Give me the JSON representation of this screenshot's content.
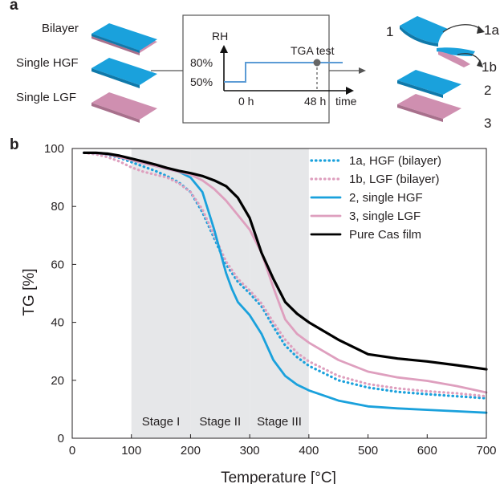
{
  "panel_a": {
    "label": "a",
    "left_labels": [
      "Bilayer",
      "Single HGF",
      "Single LGF"
    ],
    "inset": {
      "ylabel": "RH",
      "xlabel": "time",
      "y_ticks": [
        "80%",
        "50%"
      ],
      "x_ticks": [
        "0 h",
        "48 h"
      ],
      "annotation": "TGA test"
    },
    "right_labels": [
      "1",
      "1a",
      "1b",
      "2",
      "3"
    ]
  },
  "chart_data": {
    "panel_label": "b",
    "type": "line",
    "xlabel": "Temperature [°C]",
    "ylabel": "TG [%]",
    "xlim": [
      0,
      700
    ],
    "ylim": [
      0,
      100
    ],
    "x_ticks": [
      0,
      100,
      200,
      300,
      400,
      500,
      600,
      700
    ],
    "y_ticks": [
      0,
      20,
      40,
      60,
      80,
      100
    ],
    "legend_position": "top-right",
    "shaded_regions": [
      {
        "label": "Stage I",
        "x": [
          100,
          200
        ]
      },
      {
        "label": "Stage II",
        "x": [
          200,
          300
        ]
      },
      {
        "label": "Stage III",
        "x": [
          300,
          400
        ]
      }
    ],
    "series": [
      {
        "name": "1a, HGF (bilayer)",
        "color": "#1aa1dc",
        "dash": "dotted",
        "x": [
          20,
          40,
          60,
          80,
          100,
          120,
          140,
          160,
          180,
          200,
          220,
          240,
          260,
          280,
          300,
          320,
          340,
          360,
          380,
          400,
          450,
          500,
          550,
          600,
          650,
          700
        ],
        "y": [
          98.5,
          98.3,
          97.8,
          96.8,
          95.3,
          93.8,
          92.3,
          90.5,
          88.3,
          85.0,
          78.0,
          69.0,
          60.0,
          54.0,
          50.0,
          45.5,
          38.5,
          32.0,
          28.0,
          25.0,
          20.0,
          17.5,
          16.0,
          15.2,
          14.5,
          13.8
        ]
      },
      {
        "name": "1b, LGF (bilayer)",
        "color": "#de9fbe",
        "dash": "dotted",
        "x": [
          20,
          40,
          60,
          80,
          100,
          120,
          140,
          160,
          180,
          200,
          220,
          240,
          260,
          280,
          300,
          320,
          340,
          360,
          380,
          400,
          450,
          500,
          550,
          600,
          650,
          700
        ],
        "y": [
          98.5,
          98.0,
          97.0,
          95.5,
          93.5,
          92.0,
          91.0,
          90.0,
          88.0,
          85.0,
          79.0,
          70.0,
          61.0,
          55.0,
          51.0,
          46.5,
          40.0,
          34.0,
          29.5,
          26.5,
          21.5,
          18.7,
          17.2,
          16.2,
          15.5,
          14.5
        ]
      },
      {
        "name": "2, single HGF",
        "color": "#1aa1dc",
        "dash": "solid",
        "x": [
          20,
          40,
          60,
          80,
          100,
          120,
          140,
          160,
          180,
          200,
          220,
          240,
          260,
          270,
          280,
          300,
          320,
          340,
          360,
          380,
          400,
          450,
          500,
          550,
          600,
          650,
          700
        ],
        "y": [
          98.5,
          98.4,
          98.0,
          97.0,
          96.0,
          95.0,
          94.0,
          93.0,
          92.0,
          90.0,
          85.0,
          72.0,
          57.0,
          51.5,
          47.0,
          42.5,
          36.0,
          27.0,
          21.5,
          18.5,
          16.5,
          13.0,
          11.0,
          10.3,
          9.8,
          9.3,
          8.8
        ]
      },
      {
        "name": "3, single LGF",
        "color": "#de9fbe",
        "dash": "solid",
        "x": [
          20,
          40,
          60,
          80,
          100,
          120,
          140,
          160,
          180,
          200,
          220,
          240,
          260,
          280,
          300,
          320,
          340,
          360,
          380,
          400,
          450,
          500,
          550,
          600,
          650,
          700
        ],
        "y": [
          98.5,
          98.4,
          98.0,
          97.0,
          96.0,
          95.0,
          94.0,
          93.0,
          92.0,
          91.0,
          89.0,
          86.0,
          82.0,
          77.0,
          72.0,
          64.0,
          52.0,
          41.0,
          36.0,
          33.0,
          27.0,
          23.0,
          21.0,
          19.8,
          18.0,
          15.8
        ]
      },
      {
        "name": "Pure Cas film",
        "color": "#000000",
        "dash": "solid",
        "x": [
          20,
          40,
          60,
          80,
          100,
          120,
          140,
          160,
          180,
          200,
          220,
          240,
          260,
          280,
          300,
          320,
          340,
          360,
          380,
          400,
          450,
          500,
          550,
          600,
          650,
          700
        ],
        "y": [
          98.5,
          98.5,
          98.2,
          97.5,
          96.5,
          95.5,
          94.5,
          93.3,
          92.3,
          91.5,
          90.5,
          89.0,
          87.0,
          83.0,
          76.0,
          64.0,
          55.0,
          47.0,
          43.0,
          40.0,
          34.0,
          29.0,
          27.5,
          26.5,
          25.2,
          23.8
        ]
      }
    ]
  }
}
